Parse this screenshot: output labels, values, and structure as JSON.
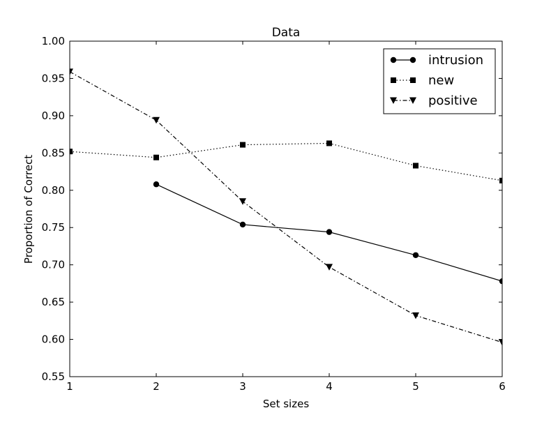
{
  "chart_data": {
    "type": "line",
    "title": "Data",
    "xlabel": "Set sizes",
    "ylabel": "Proportion of Correct",
    "xlim": [
      1,
      6
    ],
    "ylim": [
      0.55,
      1.0
    ],
    "x_ticks": [
      1,
      2,
      3,
      4,
      5,
      6
    ],
    "x_tick_labels": [
      "1",
      "2",
      "3",
      "4",
      "5",
      "6"
    ],
    "y_ticks": [
      0.55,
      0.6,
      0.65,
      0.7,
      0.75,
      0.8,
      0.85,
      0.9,
      0.95,
      1.0
    ],
    "y_tick_labels": [
      "0.55",
      "0.60",
      "0.65",
      "0.70",
      "0.75",
      "0.80",
      "0.85",
      "0.90",
      "0.95",
      "1.00"
    ],
    "grid": false,
    "legend_position": "top-right",
    "series": [
      {
        "name": "intrusion",
        "marker": "circle",
        "line_style": "solid",
        "color": "#000000",
        "x": [
          2,
          3,
          4,
          5,
          6
        ],
        "y": [
          0.808,
          0.754,
          0.744,
          0.713,
          0.678
        ]
      },
      {
        "name": "new",
        "marker": "square",
        "line_style": "dotted",
        "color": "#000000",
        "x": [
          1,
          2,
          3,
          4,
          5,
          6
        ],
        "y": [
          0.852,
          0.844,
          0.861,
          0.863,
          0.833,
          0.813
        ]
      },
      {
        "name": "positive",
        "marker": "triangle-down",
        "line_style": "dashdot",
        "color": "#000000",
        "x": [
          1,
          2,
          3,
          4,
          5,
          6
        ],
        "y": [
          0.959,
          0.894,
          0.785,
          0.697,
          0.632,
          0.596
        ]
      }
    ]
  }
}
